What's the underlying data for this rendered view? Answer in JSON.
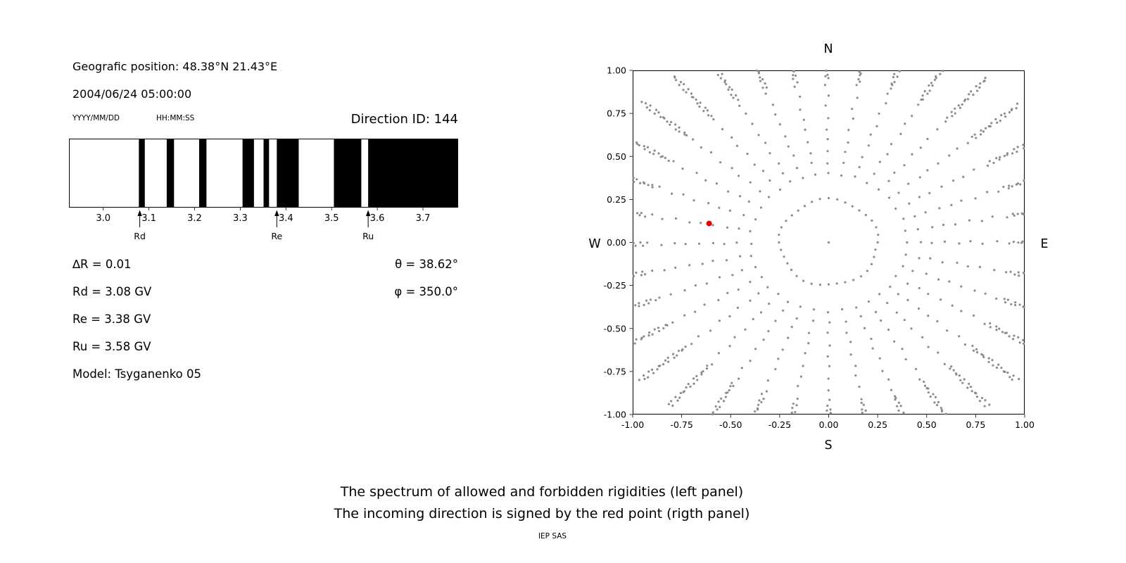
{
  "header": {
    "position_line": "Geografic position: 48.38°N 21.43°E",
    "datetime_line": "2004/06/24 05:00:00",
    "date_format_label": "YYYY/MM/DD",
    "time_format_label": "HH:MM:SS",
    "direction_id": "Direction ID: 144"
  },
  "parameters": {
    "left": [
      "∆R = 0.01",
      "Rd = 3.08 GV",
      "Re = 3.38 GV",
      "Ru = 3.58 GV",
      "Model: Tsyganenko 05"
    ],
    "right": [
      "θ = 38.62°",
      "φ = 350.0°"
    ]
  },
  "captions": {
    "line1": "The spectrum of allowed and forbidden rigidities (left panel)",
    "line2": "The incoming direction is signed by the red point (rigth panel)",
    "credit": "IEP SAS"
  },
  "chart_data": [
    {
      "name": "rigidity_spectrum",
      "type": "bar",
      "subtype": "penumbra-barcode",
      "x_domain": [
        2.925,
        3.777
      ],
      "x_tick_values": [
        3.0,
        3.1,
        3.2,
        3.3,
        3.4,
        3.5,
        3.6,
        3.7
      ],
      "x_tick_labels": [
        "3.0",
        "3.1",
        "3.2",
        "3.3",
        "3.4",
        "3.5",
        "3.6",
        "3.7"
      ],
      "forbidden_bands_gv": [
        [
          3.078,
          3.091
        ],
        [
          3.139,
          3.155
        ],
        [
          3.21,
          3.226
        ],
        [
          3.305,
          3.33
        ],
        [
          3.351,
          3.363
        ],
        [
          3.38,
          3.428
        ],
        [
          3.505,
          3.565
        ],
        [
          3.58,
          3.777
        ]
      ],
      "band_color": "#000000",
      "background": "#ffffff",
      "markers": [
        {
          "label": "Rd",
          "value_gv": 3.08
        },
        {
          "label": "Re",
          "value_gv": 3.38
        },
        {
          "label": "Ru",
          "value_gv": 3.58
        }
      ]
    },
    {
      "name": "incoming_direction_map",
      "type": "scatter",
      "xlim": [
        -1.0,
        1.0
      ],
      "ylim": [
        -1.0,
        1.0
      ],
      "x_tick_labels": [
        "-1.00",
        "-0.75",
        "-0.50",
        "-0.25",
        "0.00",
        "0.25",
        "0.50",
        "0.75",
        "1.00"
      ],
      "y_tick_labels": [
        "1.00",
        "0.75",
        "0.50",
        "0.25",
        "0.00",
        "-0.25",
        "-0.50",
        "-0.75",
        "-1.00"
      ],
      "compass": {
        "top": "N",
        "bottom": "S",
        "left": "W",
        "right": "E"
      },
      "grid": false,
      "dot_color": "#8c8c8c",
      "dot_radius_px": 1.6,
      "red_point": {
        "x": -0.61,
        "y": 0.11,
        "color": "#ee0000",
        "radius_px": 4
      },
      "pattern": {
        "center_dot": true,
        "inner_ring": {
          "radius": 0.25,
          "count": 36
        },
        "spokes": {
          "count": 36,
          "step_deg": 10,
          "start_angle_deg": 0,
          "r_start": 0.4,
          "linear_step": 0.065,
          "r_dense_start": 0.95,
          "dense_step": 0.015,
          "r_end_base": 1.02,
          "r_end_diagonal_extra": 0.24
        }
      }
    }
  ]
}
